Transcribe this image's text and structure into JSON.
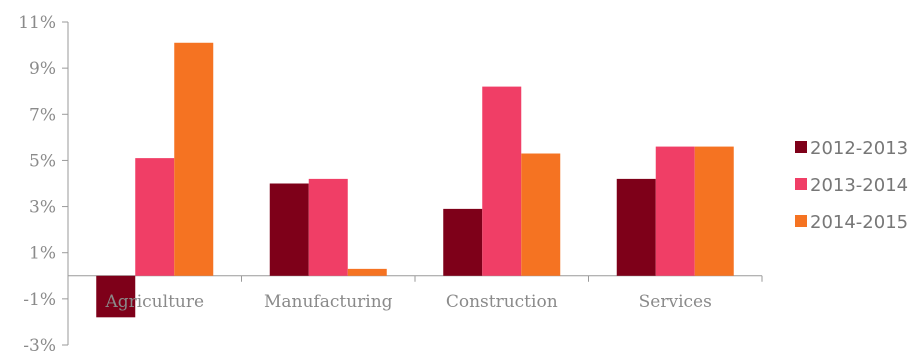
{
  "chart_data": {
    "type": "bar",
    "categories": [
      "Agriculture",
      "Manufacturing",
      "Construction",
      "Services"
    ],
    "series": [
      {
        "name": "2012-2013",
        "values": [
          -1.8,
          4.0,
          2.9,
          4.2
        ],
        "color": "#7e0019"
      },
      {
        "name": "2013-2014",
        "values": [
          5.1,
          4.2,
          8.2,
          5.6
        ],
        "color": "#f03e66"
      },
      {
        "name": "2014-2015",
        "values": [
          10.1,
          0.3,
          5.3,
          5.6
        ],
        "color": "#f57322"
      }
    ],
    "ylim": [
      -3,
      11
    ],
    "y_ticks": [
      "-3%",
      "-1%",
      "1%",
      "3%",
      "5%",
      "7%",
      "9%",
      "11%"
    ],
    "legend_position": "right",
    "grid": false
  }
}
